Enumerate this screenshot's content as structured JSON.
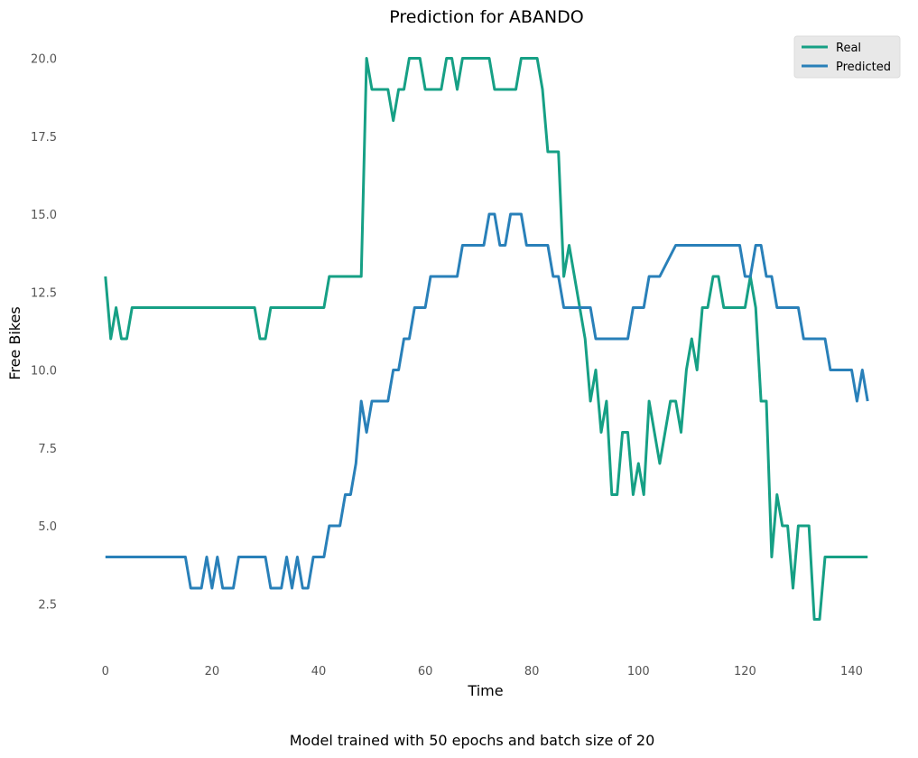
{
  "chart_data": {
    "type": "line",
    "title": "Prediction for ABANDO",
    "xlabel": "Time",
    "ylabel": "Free Bikes",
    "caption": "Model trained with 50 epochs and batch size of 20",
    "xlim": [
      -2,
      145
    ],
    "ylim": [
      1,
      21
    ],
    "xticks": [
      0,
      20,
      40,
      60,
      80,
      100,
      120,
      140
    ],
    "yticks": [
      2.5,
      5.0,
      7.5,
      10.0,
      12.5,
      15.0,
      17.5,
      20.0
    ],
    "ytick_labels": [
      "2.5",
      "5.0",
      "7.5",
      "10.0",
      "12.5",
      "15.0",
      "17.5",
      "20.0"
    ],
    "grid": false,
    "legend_position": "top-right",
    "series": [
      {
        "name": "Real",
        "color": "#16a085",
        "x": [
          0,
          1,
          2,
          3,
          4,
          5,
          28,
          29,
          30,
          31,
          41,
          42,
          48,
          49,
          50,
          53,
          54,
          55,
          56,
          57,
          59,
          60,
          63,
          64,
          65,
          66,
          67,
          72,
          73,
          77,
          78,
          81,
          82,
          83,
          85,
          86,
          87,
          90,
          91,
          92,
          93,
          94,
          95,
          96,
          97,
          98,
          99,
          100,
          101,
          102,
          104,
          106,
          107,
          108,
          109,
          110,
          111,
          112,
          113,
          114,
          115,
          116,
          120,
          121,
          122,
          123,
          124,
          125,
          126,
          127,
          128,
          129,
          130,
          132,
          133,
          134,
          135,
          143
        ],
        "values": [
          13,
          11,
          12,
          11,
          11,
          12,
          12,
          11,
          11,
          12,
          12,
          13,
          13,
          20,
          19,
          19,
          18,
          19,
          19,
          20,
          20,
          19,
          19,
          20,
          20,
          19,
          20,
          20,
          19,
          19,
          20,
          20,
          19,
          17,
          17,
          13,
          14,
          11,
          9,
          10,
          8,
          9,
          6,
          6,
          8,
          8,
          6,
          7,
          6,
          9,
          7,
          9,
          9,
          8,
          10,
          11,
          10,
          12,
          12,
          13,
          13,
          12,
          12,
          13,
          12,
          9,
          9,
          4,
          6,
          5,
          5,
          3,
          5,
          5,
          2,
          2,
          4,
          4
        ]
      },
      {
        "name": "Predicted",
        "color": "#2980b9",
        "x": [
          0,
          15,
          16,
          18,
          19,
          20,
          21,
          22,
          24,
          25,
          30,
          31,
          33,
          34,
          35,
          36,
          37,
          38,
          39,
          41,
          42,
          44,
          45,
          46,
          47,
          48,
          49,
          50,
          53,
          54,
          55,
          56,
          57,
          58,
          60,
          61,
          62,
          66,
          67,
          71,
          72,
          73,
          74,
          75,
          76,
          78,
          79,
          83,
          84,
          85,
          86,
          91,
          92,
          98,
          99,
          101,
          102,
          104,
          107,
          108,
          119,
          120,
          121,
          122,
          123,
          124,
          125,
          126,
          130,
          131,
          135,
          136,
          140,
          141,
          142,
          143
        ],
        "values": [
          4,
          4,
          3,
          3,
          4,
          3,
          4,
          3,
          3,
          4,
          4,
          3,
          3,
          4,
          3,
          4,
          3,
          3,
          4,
          4,
          5,
          5,
          6,
          6,
          7,
          9,
          8,
          9,
          9,
          10,
          10,
          11,
          11,
          12,
          12,
          13,
          13,
          13,
          14,
          14,
          15,
          15,
          14,
          14,
          15,
          15,
          14,
          14,
          13,
          13,
          12,
          12,
          11,
          11,
          12,
          12,
          13,
          13,
          14,
          14,
          14,
          13,
          13,
          14,
          14,
          13,
          13,
          12,
          12,
          11,
          11,
          10,
          10,
          9,
          10,
          9
        ]
      }
    ]
  }
}
